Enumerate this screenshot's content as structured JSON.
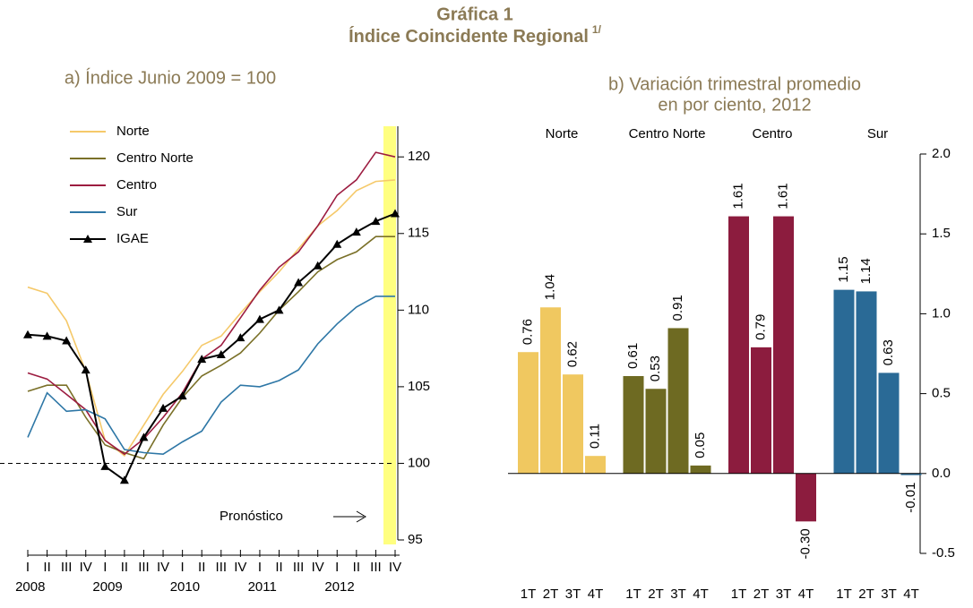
{
  "title": "Gráfica 1",
  "subtitle": "Índice Coincidente Regional",
  "subtitle_note": "1/",
  "chart_data": [
    {
      "type": "line",
      "title": "a) Índice Junio 2009 = 100",
      "categories": [
        "I",
        "II",
        "III",
        "IV",
        "I",
        "II",
        "III",
        "IV",
        "I",
        "II",
        "III",
        "IV",
        "I",
        "II",
        "III",
        "IV",
        "I",
        "II",
        "III",
        "IV"
      ],
      "years": [
        "2008",
        "2009",
        "2010",
        "2011",
        "2012"
      ],
      "ylim": [
        95,
        122
      ],
      "yticks": [
        95,
        100,
        105,
        110,
        115,
        120
      ],
      "reference_line": 100,
      "annotation": "Pronóstico",
      "legend": "upper left",
      "series": [
        {
          "name": "Norte",
          "color": "#f5c96a",
          "values": [
            111.5,
            111.1,
            109.3,
            106.0,
            101.5,
            100.5,
            102.5,
            104.5,
            106.0,
            107.7,
            108.3,
            109.8,
            111.2,
            112.5,
            114.0,
            115.5,
            116.5,
            117.8,
            118.4,
            118.5
          ]
        },
        {
          "name": "Centro Norte",
          "color": "#7a7028",
          "values": [
            104.7,
            105.1,
            105.1,
            103.0,
            101.2,
            100.7,
            100.3,
            102.5,
            104.3,
            105.7,
            106.4,
            107.2,
            108.5,
            110.0,
            111.2,
            112.5,
            113.3,
            113.8,
            114.8,
            114.8
          ]
        },
        {
          "name": "Centro",
          "color": "#9c1c40",
          "values": [
            105.9,
            105.5,
            104.5,
            103.5,
            101.5,
            100.6,
            101.6,
            103.0,
            104.6,
            106.8,
            107.7,
            109.5,
            111.3,
            112.8,
            113.8,
            115.5,
            117.5,
            118.5,
            120.3,
            120.0
          ]
        },
        {
          "name": "Sur",
          "color": "#2e77a6",
          "values": [
            101.7,
            104.6,
            103.4,
            103.5,
            102.9,
            100.9,
            100.7,
            100.6,
            101.4,
            102.1,
            104.0,
            105.1,
            105.0,
            105.4,
            106.1,
            107.8,
            109.1,
            110.2,
            110.9,
            110.9
          ]
        },
        {
          "name": "IGAE",
          "color": "#000000",
          "marker": "triangle",
          "values": [
            108.4,
            108.3,
            108.0,
            106.1,
            99.8,
            98.9,
            101.7,
            103.6,
            104.4,
            106.8,
            107.1,
            108.2,
            109.4,
            110.0,
            111.8,
            112.9,
            114.3,
            115.1,
            115.8,
            116.3
          ]
        }
      ]
    },
    {
      "type": "bar",
      "title": [
        "b) Variación trimestral promedio",
        "en por ciento, 2012"
      ],
      "categories": [
        "1T",
        "2T",
        "3T",
        "4T"
      ],
      "ylim": [
        -0.5,
        2.0
      ],
      "yticks": [
        -0.5,
        {
          "value": 0,
          "label": "0.0"
        },
        0.5,
        {
          "value": 1,
          "label": "1.0"
        },
        1.5,
        {
          "value": 2,
          "label": "2.0"
        }
      ],
      "series": [
        {
          "name": "Norte",
          "color": "#f0c860",
          "values": [
            0.76,
            1.04,
            0.62,
            0.11
          ]
        },
        {
          "name": "Centro Norte",
          "color": "#6e6a22",
          "values": [
            0.61,
            0.53,
            0.91,
            0.05
          ]
        },
        {
          "name": "Centro",
          "color": "#8c1c3e",
          "values": [
            1.61,
            0.79,
            1.61,
            -0.3
          ],
          "value_labels": [
            "1.61",
            "0.79",
            "1.61",
            "-0.30"
          ]
        },
        {
          "name": "Sur",
          "color": "#2a6a96",
          "values": [
            1.15,
            1.14,
            0.63,
            -0.01
          ]
        }
      ]
    }
  ]
}
